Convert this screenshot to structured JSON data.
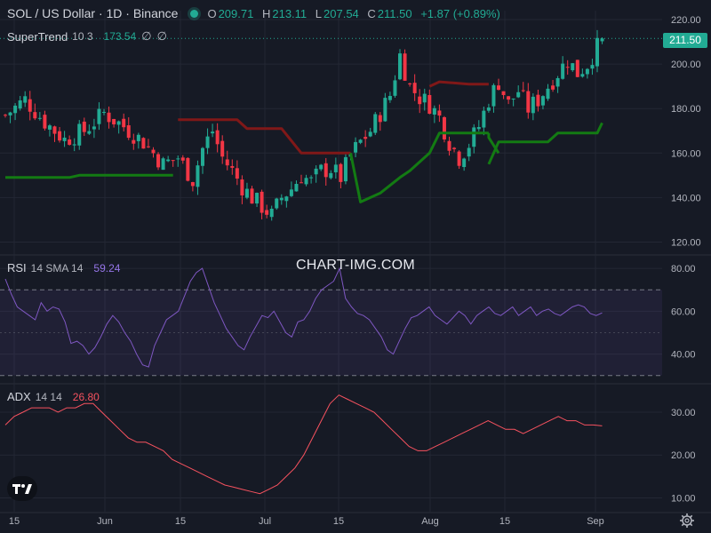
{
  "header": {
    "symbol_title": "SOL / US Dollar · 1D · Binance",
    "ohlc": {
      "o_label": "O",
      "o": "209.71",
      "h_label": "H",
      "h": "213.11",
      "l_label": "L",
      "l": "207.54",
      "c_label": "C",
      "c": "211.50",
      "change": "+1.87 (+0.89%)"
    },
    "status_color": "#22ab94"
  },
  "indicators": {
    "supertrend": {
      "name": "SuperTrend",
      "params": "10 3",
      "value": "173.54",
      "icon1": "∅",
      "icon2": "∅",
      "up_color": "#137b13",
      "down_color": "#801818"
    },
    "rsi": {
      "name": "RSI",
      "params": "14 SMA 14",
      "value": "59.24",
      "color": "#7e57c2"
    },
    "adx": {
      "name": "ADX",
      "params": "14 14",
      "value": "26.80",
      "color": "#f7525f"
    }
  },
  "last_price_label": "211.50",
  "watermark": "CHART-IMG.COM",
  "icons": {
    "logo": "tradingview-logo-icon",
    "settings": "gear-icon"
  },
  "colors": {
    "up": "#22ab94",
    "down": "#f23645",
    "background": "#161a25",
    "grid": "#232734"
  },
  "chart_data": [
    {
      "type": "candlestick",
      "title": "SOL / US Dollar · 1D · Binance",
      "x_ticks": [
        "15",
        "Jun",
        "15",
        "Jul",
        "15",
        "Aug",
        "15",
        "Sep"
      ],
      "y_ticks": [
        "120.00",
        "140.00",
        "160.00",
        "180.00",
        "200.00",
        "220.00"
      ],
      "ylim": [
        115,
        224
      ],
      "close_path": [
        [
          0,
          177
        ],
        [
          4,
          184
        ],
        [
          8,
          174
        ],
        [
          12,
          166
        ],
        [
          16,
          170
        ],
        [
          20,
          178
        ],
        [
          24,
          172
        ],
        [
          28,
          165
        ],
        [
          32,
          155
        ],
        [
          35,
          158
        ],
        [
          38,
          148
        ],
        [
          40,
          162
        ],
        [
          42,
          170
        ],
        [
          44,
          158
        ],
        [
          46,
          152
        ],
        [
          48,
          145
        ],
        [
          50,
          140
        ],
        [
          52,
          136
        ],
        [
          54,
          132
        ],
        [
          56,
          140
        ],
        [
          58,
          144
        ],
        [
          60,
          150
        ],
        [
          62,
          147
        ],
        [
          64,
          152
        ],
        [
          66,
          153
        ],
        [
          68,
          149
        ],
        [
          70,
          159
        ],
        [
          72,
          165
        ],
        [
          74,
          170
        ],
        [
          76,
          178
        ],
        [
          78,
          186
        ],
        [
          80,
          204
        ],
        [
          82,
          190
        ],
        [
          84,
          185
        ],
        [
          86,
          182
        ],
        [
          88,
          176
        ],
        [
          90,
          165
        ],
        [
          92,
          158
        ],
        [
          94,
          164
        ],
        [
          96,
          172
        ],
        [
          98,
          184
        ],
        [
          100,
          192
        ],
        [
          102,
          182
        ],
        [
          104,
          188
        ],
        [
          106,
          180
        ],
        [
          108,
          184
        ],
        [
          110,
          190
        ],
        [
          112,
          196
        ],
        [
          114,
          202
        ],
        [
          116,
          196
        ],
        [
          118,
          200
        ],
        [
          121,
          211.5
        ]
      ],
      "supertrend": [
        {
          "dir": "up",
          "points": [
            [
              0,
              149
            ],
            [
              13,
              149
            ],
            [
              15,
              150
            ],
            [
              34,
              150
            ]
          ]
        },
        {
          "dir": "down",
          "points": [
            [
              35,
              175
            ],
            [
              47,
              175
            ],
            [
              49,
              171
            ],
            [
              56,
              171
            ],
            [
              60,
              160
            ],
            [
              70,
              160
            ]
          ]
        },
        {
          "dir": "up",
          "points": [
            [
              70,
              160
            ],
            [
              72,
              138
            ],
            [
              76,
              142
            ],
            [
              80,
              149
            ],
            [
              82,
              152
            ],
            [
              84,
              156
            ],
            [
              86,
              160
            ],
            [
              88,
              169
            ],
            [
              98,
              169
            ]
          ]
        },
        {
          "dir": "up",
          "points": [
            [
              98,
              169
            ],
            [
              98,
              167
            ],
            [
              100,
              160
            ]
          ]
        },
        {
          "dir": "down",
          "points": [
            [
              86,
              190
            ],
            [
              88,
              192
            ],
            [
              94,
              191
            ],
            [
              98,
              191
            ]
          ]
        },
        {
          "dir": "up",
          "points": [
            [
              98,
              155
            ],
            [
              100,
              165
            ],
            [
              110,
              165
            ],
            [
              112,
              169
            ],
            [
              120,
              169
            ],
            [
              121,
              173.54
            ]
          ]
        }
      ],
      "last_price": 211.5
    },
    {
      "type": "line",
      "name": "RSI",
      "y_ticks": [
        "40.00",
        "60.00",
        "80.00"
      ],
      "ylim": [
        27,
        85
      ],
      "bands": [
        30,
        70
      ],
      "values": [
        75,
        68,
        62,
        60,
        58,
        56,
        64,
        60,
        62,
        61,
        55,
        45,
        46,
        44,
        40,
        43,
        48,
        54,
        58,
        55,
        50,
        46,
        40,
        35,
        34,
        44,
        50,
        56,
        58,
        60,
        67,
        74,
        78,
        80,
        72,
        64,
        58,
        52,
        48,
        44,
        42,
        48,
        53,
        58,
        57,
        60,
        55,
        50,
        48,
        55,
        56,
        60,
        66,
        70,
        72,
        74,
        80,
        66,
        62,
        59,
        58,
        56,
        52,
        48,
        42,
        40,
        46,
        52,
        57,
        58,
        60,
        62,
        58,
        56,
        54,
        57,
        60,
        58,
        54,
        58,
        60,
        62,
        59,
        58,
        60,
        62,
        58,
        60,
        62,
        58,
        60,
        61,
        59,
        58,
        60,
        62,
        63,
        62,
        59,
        58,
        59.24
      ]
    },
    {
      "type": "line",
      "name": "ADX",
      "y_ticks": [
        "10.00",
        "20.00",
        "30.00"
      ],
      "ylim": [
        7,
        36
      ],
      "values": [
        27,
        29,
        30,
        31,
        31,
        31,
        30,
        31,
        31,
        32,
        32,
        30,
        28,
        26,
        24,
        23,
        23,
        22,
        21,
        19,
        18,
        17,
        16,
        15,
        14,
        13,
        12.5,
        12,
        11.5,
        11,
        12,
        13,
        15,
        17,
        20,
        24,
        28,
        32,
        34,
        33,
        32,
        31,
        30,
        28,
        26,
        24,
        22,
        21,
        21,
        22,
        23,
        24,
        25,
        26,
        27,
        28,
        27,
        26,
        26,
        25,
        26,
        27,
        28,
        29,
        28,
        28,
        27,
        27,
        26.8
      ]
    }
  ]
}
